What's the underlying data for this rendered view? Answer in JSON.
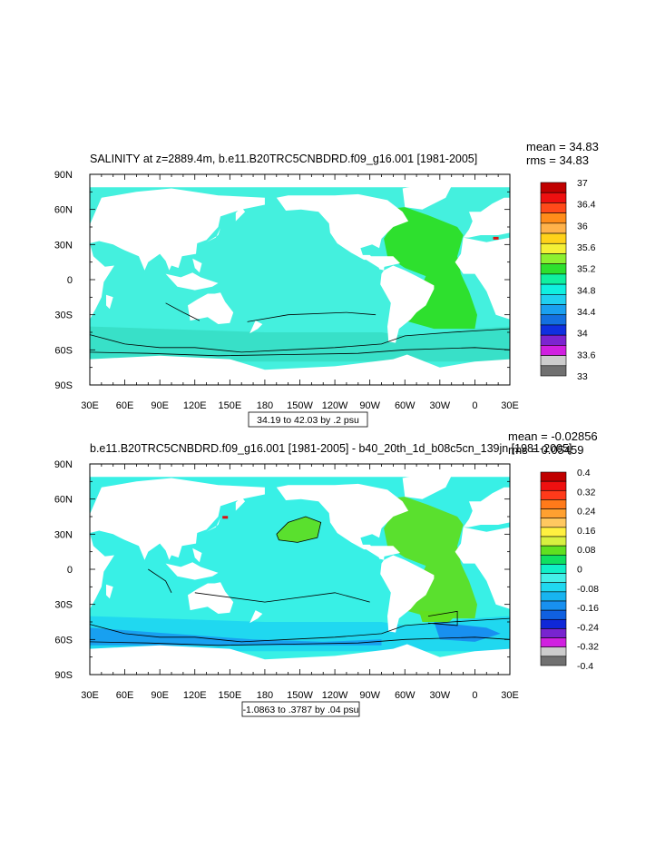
{
  "chart_data": [
    {
      "type": "heatmap",
      "title": "SALINITY at z=2889.4m, b.e11.B20TRC5CNBDRD.f09_g16.001 [1981-2005]",
      "stats": [
        "mean = 34.83",
        "rms = 34.83"
      ],
      "x_ticks": [
        "30E",
        "60E",
        "90E",
        "120E",
        "150E",
        "180",
        "150W",
        "120W",
        "90W",
        "60W",
        "30W",
        "0",
        "30E"
      ],
      "y_ticks": [
        "90N",
        "60N",
        "30N",
        "0",
        "30S",
        "60S",
        "90S"
      ],
      "xlim": [
        30,
        390
      ],
      "ylim": [
        -90,
        90
      ],
      "contour_info": "34.19 to 42.03 by .2 psu",
      "legend_labels": [
        "37",
        "36.4",
        "36",
        "35.6",
        "35.2",
        "34.8",
        "34.4",
        "34",
        "33.6",
        "33"
      ],
      "legend_colors": [
        "#c00000",
        "#ee1010",
        "#ff4a1a",
        "#ff8c1a",
        "#ffb24a",
        "#ffd21a",
        "#f4f036",
        "#8cf030",
        "#2ee02e",
        "#10f0a0",
        "#10f0e0",
        "#20d0f0",
        "#1aa0f0",
        "#1470e0",
        "#1030e0",
        "#7c24d0",
        "#d020e0",
        "#cccccc",
        "#707070"
      ],
      "field": {
        "ocean": "#44f0de",
        "south": "#38e0c8",
        "atlantic": "#2ee02e",
        "red": "#dd1111",
        "blue": "#1aa0f0"
      }
    },
    {
      "type": "heatmap",
      "title": "b.e11.B20TRC5CNBDRD.f09_g16.001 [1981-2005] - b40_20th_1d_b08c5cn_139jn [1981-2005]",
      "stats": [
        "mean = -0.02856",
        "rms = 0.05459"
      ],
      "x_ticks": [
        "30E",
        "60E",
        "90E",
        "120E",
        "150E",
        "180",
        "150W",
        "120W",
        "90W",
        "60W",
        "30W",
        "0",
        "30E"
      ],
      "y_ticks": [
        "90N",
        "60N",
        "30N",
        "0",
        "30S",
        "60S",
        "90S"
      ],
      "xlim": [
        30,
        390
      ],
      "ylim": [
        -90,
        90
      ],
      "contour_info": "-1.0863 to .3787 by .04 psu",
      "legend_labels": [
        "0.4",
        "0.32",
        "0.24",
        "0.16",
        "0.08",
        "0",
        "-0.08",
        "-0.16",
        "-0.24",
        "-0.32",
        "-0.4"
      ],
      "legend_colors": [
        "#c00000",
        "#ee1010",
        "#ff3a1a",
        "#ff7a1a",
        "#ffa030",
        "#ffc860",
        "#fff040",
        "#d8f040",
        "#60e020",
        "#10e060",
        "#10f0c8",
        "#44f0e8",
        "#20d8f0",
        "#18b4f0",
        "#1890f0",
        "#1060e0",
        "#1028d8",
        "#7824d0",
        "#d020e0",
        "#cccccc",
        "#707070"
      ],
      "field": {
        "ocean": "#38f0e6",
        "south": "#20d8f0",
        "atlantic": "#5ae02e",
        "red": "#dd1111",
        "blue": "#18a0f0",
        "deep": "#1890f0",
        "yellow": "#ffc020",
        "lime": "#60e020"
      }
    }
  ]
}
